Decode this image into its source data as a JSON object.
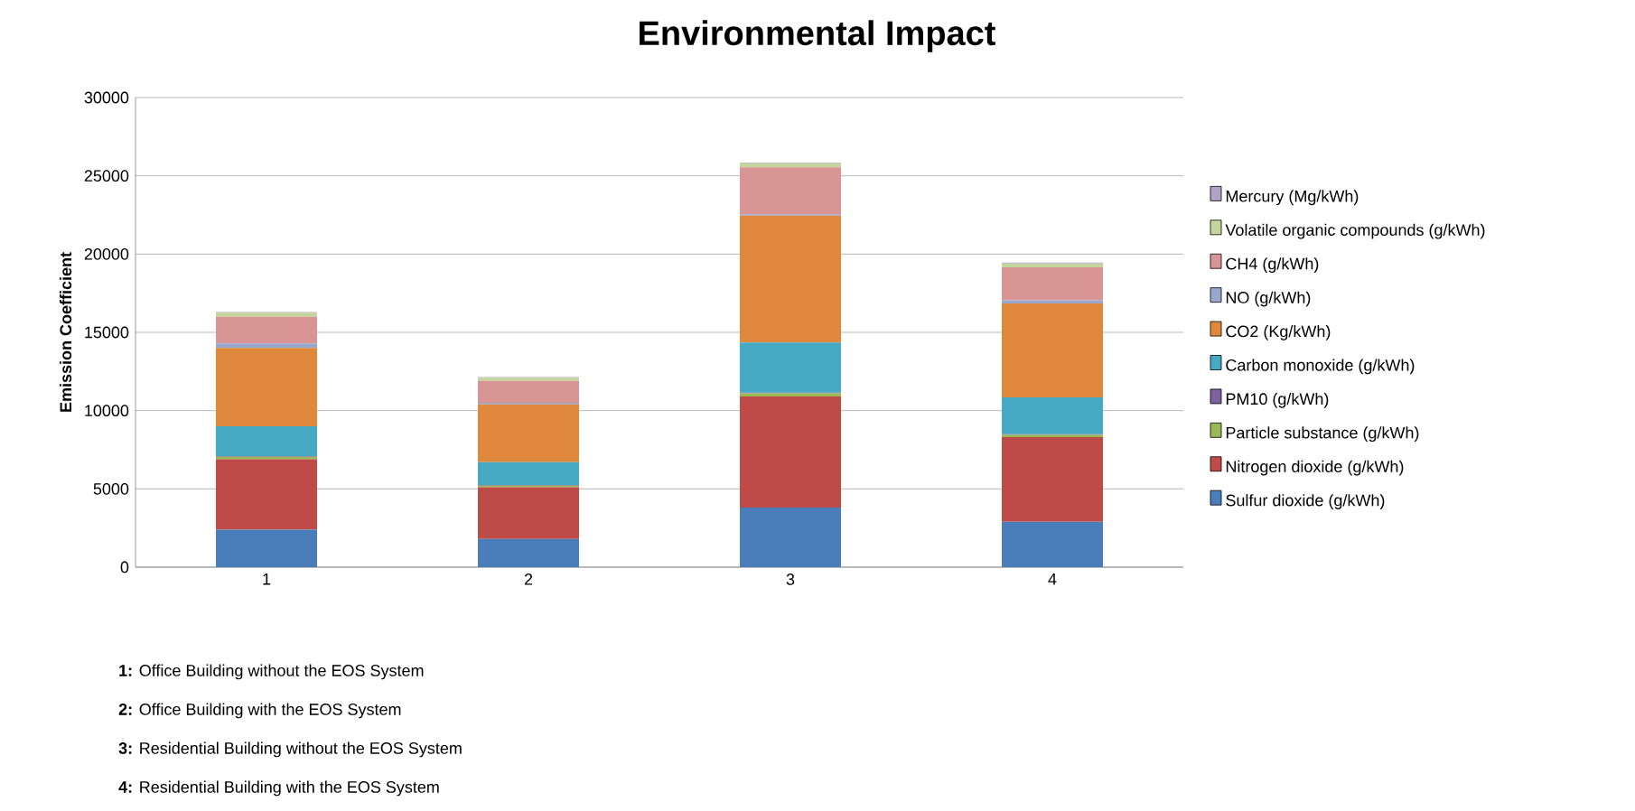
{
  "chart_data": {
    "type": "bar",
    "title": "Environmental Impact",
    "ylabel": "Emission Coefficient",
    "stacked": true,
    "grid": "y",
    "legend": "right",
    "categories": [
      "1",
      "2",
      "3",
      "4"
    ],
    "ylim": [
      0,
      30000
    ],
    "yticks": [
      0,
      5000,
      10000,
      15000,
      20000,
      25000,
      30000
    ],
    "series": [
      {
        "name": "Sulfur dioxide (g/kWh)",
        "color": "#4a7ebb",
        "values": [
          2400,
          1800,
          3800,
          2900
        ]
      },
      {
        "name": "Nitrogen dioxide (g/kWh)",
        "color": "#be4b48",
        "values": [
          4500,
          3300,
          7100,
          5400
        ]
      },
      {
        "name": "Particle substance (g/kWh)",
        "color": "#98b954",
        "values": [
          150,
          100,
          200,
          150
        ]
      },
      {
        "name": "PM10 (g/kWh)",
        "color": "#7d60a0",
        "values": [
          50,
          50,
          50,
          50
        ]
      },
      {
        "name": "Carbon monoxide (g/kWh)",
        "color": "#46aac5",
        "values": [
          1900,
          1450,
          3200,
          2350
        ]
      },
      {
        "name": "CO2 (Kg/kWh)",
        "color": "#e0883c",
        "values": [
          5000,
          3700,
          8100,
          6000
        ]
      },
      {
        "name": "NO (g/kWh)",
        "color": "#99a8cf",
        "values": [
          300,
          100,
          100,
          200
        ]
      },
      {
        "name": "CH4 (g/kWh)",
        "color": "#d99594",
        "values": [
          1700,
          1400,
          3000,
          2100
        ]
      },
      {
        "name": "Volatile organic compounds (g/kWh)",
        "color": "#c3d69b",
        "values": [
          250,
          200,
          250,
          250
        ]
      },
      {
        "name": "Mercury (Mg/kWh)",
        "color": "#b3a2c7",
        "values": [
          50,
          50,
          50,
          50
        ]
      }
    ],
    "annotations": [
      "**1:** Office Building without the EOS System",
      "**2:** Office Building with the EOS System",
      "**3:** Residential Building without the EOS System",
      "**4:** Residential Building with the EOS System"
    ]
  }
}
